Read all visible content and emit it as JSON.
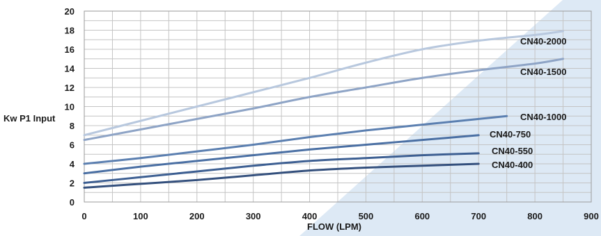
{
  "chart_data": {
    "type": "line",
    "xlabel": "FLOW (LPM)",
    "ylabel": "Kw P1 Input",
    "xlim": [
      0,
      900
    ],
    "ylim": [
      0,
      20
    ],
    "xticks": [
      0,
      100,
      200,
      300,
      400,
      500,
      600,
      700,
      800,
      900
    ],
    "yticks": [
      0,
      2,
      4,
      6,
      8,
      10,
      12,
      14,
      16,
      18,
      20
    ],
    "grid": true,
    "legend": "inline labels at line ends",
    "series": [
      {
        "name": "CN40-2000",
        "color": "#b8c8de",
        "x": [
          0,
          100,
          200,
          300,
          400,
          500,
          600,
          700,
          800,
          850
        ],
        "y": [
          7.0,
          8.5,
          10.0,
          11.5,
          13.0,
          14.6,
          16.0,
          16.9,
          17.5,
          17.9
        ]
      },
      {
        "name": "CN40-1500",
        "color": "#8ea4c6",
        "x": [
          0,
          100,
          200,
          300,
          400,
          500,
          600,
          700,
          800,
          850
        ],
        "y": [
          6.5,
          7.6,
          8.7,
          9.8,
          11.0,
          12.0,
          13.0,
          13.8,
          14.5,
          15.0
        ]
      },
      {
        "name": "CN40-1000",
        "color": "#5b7fb0",
        "x": [
          0,
          100,
          200,
          300,
          400,
          500,
          600,
          700,
          750
        ],
        "y": [
          4.0,
          4.6,
          5.3,
          6.0,
          6.8,
          7.5,
          8.1,
          8.7,
          9.0
        ]
      },
      {
        "name": "CN40-750",
        "color": "#4a6fa3",
        "x": [
          0,
          100,
          200,
          300,
          400,
          500,
          600,
          700
        ],
        "y": [
          3.0,
          3.7,
          4.3,
          4.9,
          5.5,
          6.0,
          6.5,
          7.0
        ]
      },
      {
        "name": "CN40-550",
        "color": "#3d5f92",
        "x": [
          0,
          100,
          200,
          300,
          400,
          500,
          600,
          700
        ],
        "y": [
          2.0,
          2.6,
          3.2,
          3.8,
          4.3,
          4.6,
          4.9,
          5.1
        ]
      },
      {
        "name": "CN40-400",
        "color": "#34507d",
        "x": [
          0,
          100,
          200,
          300,
          400,
          500,
          600,
          700
        ],
        "y": [
          1.5,
          1.9,
          2.3,
          2.8,
          3.3,
          3.6,
          3.8,
          4.0
        ]
      }
    ]
  }
}
